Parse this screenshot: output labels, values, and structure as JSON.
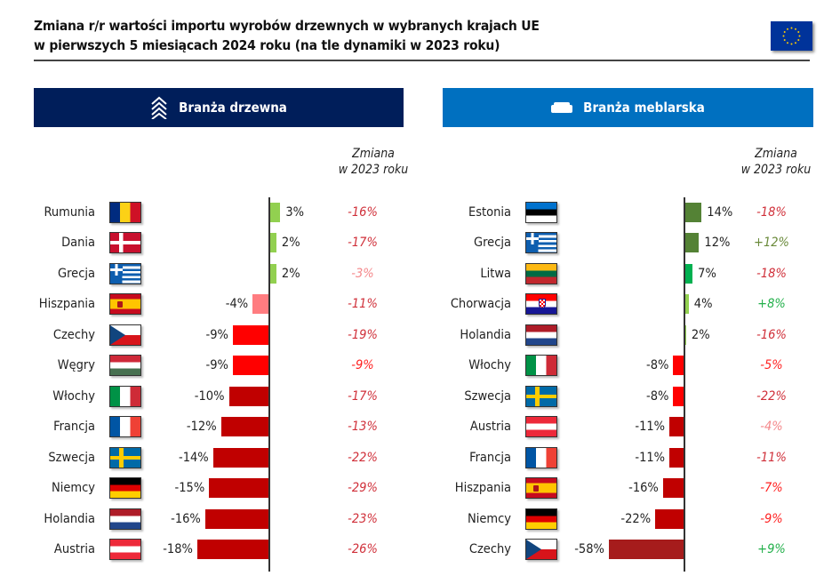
{
  "title": {
    "line1": "Zmiana r/r wartości importu wyrobów drzewnych w wybranych krajach UE",
    "line2": "w pierwszych 5 miesiącach 2024 roku (na tle dynamiki w 2023 roku)"
  },
  "colors": {
    "wood_header": "#001e5a",
    "furniture_header": "#0070c0"
  },
  "icons": {
    "wood": "chevron-stack-icon",
    "furniture": "sofa-icon",
    "logo": "eu-flag-icon"
  },
  "chart_data": [
    {
      "type": "bar",
      "orientation": "horizontal",
      "title": "Branża drzewna",
      "change_header": [
        "Zmiana",
        "w 2023 roku"
      ],
      "unit": "%",
      "rows": [
        {
          "country": "Rumunia",
          "flag": "ro",
          "value": 3,
          "label": "3%",
          "color": "#92d050",
          "change": "-16%",
          "change_color": "#d0303a"
        },
        {
          "country": "Dania",
          "flag": "dk",
          "value": 2,
          "label": "2%",
          "color": "#92d050",
          "change": "-17%",
          "change_color": "#d0303a"
        },
        {
          "country": "Grecja",
          "flag": "gr",
          "value": 2,
          "label": "2%",
          "color": "#92d050",
          "change": "-3%",
          "change_color": "#f4878a"
        },
        {
          "country": "Hiszpania",
          "flag": "es",
          "value": -4,
          "label": "-4%",
          "color": "#ff7c80",
          "change": "-11%",
          "change_color": "#d0303a"
        },
        {
          "country": "Czechy",
          "flag": "cz",
          "value": -9,
          "label": "-9%",
          "color": "#ff0000",
          "change": "-19%",
          "change_color": "#d0303a"
        },
        {
          "country": "Węgry",
          "flag": "hu",
          "value": -9,
          "label": "-9%",
          "color": "#ff0000",
          "change": "-9%",
          "change_color": "#ff2020"
        },
        {
          "country": "Włochy",
          "flag": "it",
          "value": -10,
          "label": "-10%",
          "color": "#c00000",
          "change": "-17%",
          "change_color": "#d0303a"
        },
        {
          "country": "Francja",
          "flag": "fr",
          "value": -12,
          "label": "-12%",
          "color": "#c00000",
          "change": "-13%",
          "change_color": "#d0303a"
        },
        {
          "country": "Szwecja",
          "flag": "se",
          "value": -14,
          "label": "-14%",
          "color": "#c00000",
          "change": "-22%",
          "change_color": "#d0303a"
        },
        {
          "country": "Niemcy",
          "flag": "de",
          "value": -15,
          "label": "-15%",
          "color": "#c00000",
          "change": "-29%",
          "change_color": "#d0303a"
        },
        {
          "country": "Holandia",
          "flag": "nl",
          "value": -16,
          "label": "-16%",
          "color": "#c00000",
          "change": "-23%",
          "change_color": "#d0303a"
        },
        {
          "country": "Austria",
          "flag": "at",
          "value": -18,
          "label": "-18%",
          "color": "#c00000",
          "change": "-26%",
          "change_color": "#d0303a"
        }
      ]
    },
    {
      "type": "bar",
      "orientation": "horizontal",
      "title": "Branża meblarska",
      "change_header": [
        "Zmiana",
        "w 2023 roku"
      ],
      "unit": "%",
      "rows": [
        {
          "country": "Estonia",
          "flag": "ee",
          "value": 14,
          "label": "14%",
          "color": "#548235",
          "change": "-18%",
          "change_color": "#d0303a"
        },
        {
          "country": "Grecja",
          "flag": "gr",
          "value": 12,
          "label": "12%",
          "color": "#548235",
          "change": "+12%",
          "change_color": "#6a8a3a"
        },
        {
          "country": "Litwa",
          "flag": "lt",
          "value": 7,
          "label": "7%",
          "color": "#00b050",
          "change": "-18%",
          "change_color": "#d0303a"
        },
        {
          "country": "Chorwacja",
          "flag": "hr",
          "value": 4,
          "label": "4%",
          "color": "#92d050",
          "change": "+8%",
          "change_color": "#22b04a"
        },
        {
          "country": "Holandia",
          "flag": "nl",
          "value": 2,
          "label": "2%",
          "color": "#92d050",
          "change": "-16%",
          "change_color": "#d0303a"
        },
        {
          "country": "Włochy",
          "flag": "it",
          "value": -8,
          "label": "-8%",
          "color": "#ff0000",
          "change": "-5%",
          "change_color": "#ff2020"
        },
        {
          "country": "Szwecja",
          "flag": "se",
          "value": -8,
          "label": "-8%",
          "color": "#ff0000",
          "change": "-22%",
          "change_color": "#d0303a"
        },
        {
          "country": "Austria",
          "flag": "at",
          "value": -11,
          "label": "-11%",
          "color": "#c00000",
          "change": "-4%",
          "change_color": "#f4878a"
        },
        {
          "country": "Francja",
          "flag": "fr",
          "value": -11,
          "label": "-11%",
          "color": "#c00000",
          "change": "-11%",
          "change_color": "#d0303a"
        },
        {
          "country": "Hiszpania",
          "flag": "es",
          "value": -16,
          "label": "-16%",
          "color": "#c00000",
          "change": "-7%",
          "change_color": "#ff2020"
        },
        {
          "country": "Niemcy",
          "flag": "de",
          "value": -22,
          "label": "-22%",
          "color": "#c00000",
          "change": "-9%",
          "change_color": "#ff2020"
        },
        {
          "country": "Czechy",
          "flag": "cz",
          "value": -58,
          "label": "-58%",
          "color": "#a61c1c",
          "change": "+9%",
          "change_color": "#22b04a"
        }
      ]
    }
  ]
}
